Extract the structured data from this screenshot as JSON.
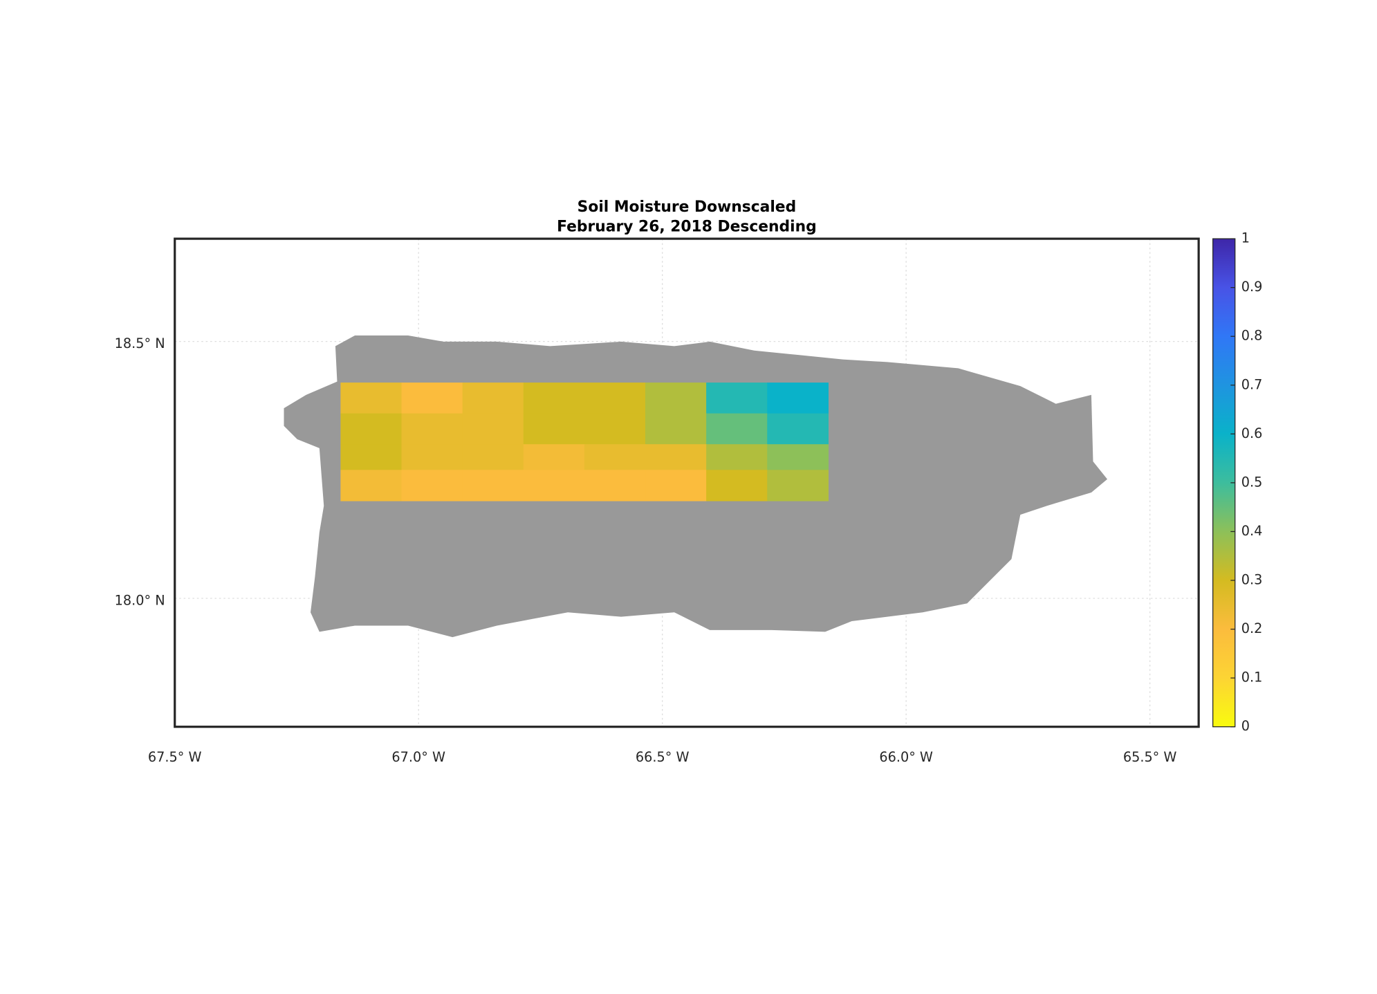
{
  "chart_data": {
    "type": "heatmap",
    "title": [
      "Soil Moisture Downscaled",
      "February 26, 2018 Descending"
    ],
    "xlim": [
      -67.5,
      -65.4
    ],
    "ylim": [
      17.75,
      18.7
    ],
    "xticks": [
      {
        "value": -67.5,
        "label": "67.5° W"
      },
      {
        "value": -67.0,
        "label": "67.0° W"
      },
      {
        "value": -66.5,
        "label": "66.5° W"
      },
      {
        "value": -66.0,
        "label": "66.0° W"
      },
      {
        "value": -65.5,
        "label": "65.5° W"
      }
    ],
    "yticks": [
      {
        "value": 18.0,
        "label": "18.0° N"
      },
      {
        "value": 18.5,
        "label": "18.5° N"
      }
    ],
    "grid": true,
    "lon_edges": [
      -67.16,
      -67.035,
      -66.91,
      -66.785,
      -66.66,
      -66.535,
      -66.41,
      -66.285,
      -66.16
    ],
    "lat_edges": [
      18.42,
      18.36,
      18.3,
      18.25,
      18.19
    ],
    "values": [
      [
        0.25,
        0.2,
        0.25,
        0.3,
        0.3,
        0.35,
        0.55,
        0.6
      ],
      [
        0.3,
        0.25,
        0.25,
        0.3,
        0.3,
        0.35,
        0.45,
        0.55
      ],
      [
        0.3,
        0.25,
        0.25,
        0.22,
        0.25,
        0.25,
        0.35,
        0.4
      ],
      [
        0.22,
        0.2,
        0.2,
        0.2,
        0.2,
        0.2,
        0.3,
        0.35
      ]
    ],
    "clim": [
      0,
      1
    ],
    "cticks": [
      0,
      0.1,
      0.2,
      0.3,
      0.4,
      0.5,
      0.6,
      0.7,
      0.8,
      0.9,
      1
    ],
    "colormap": [
      "#f9fb0e",
      "#fcd434",
      "#fbbc3d",
      "#d4bb21",
      "#8dc059",
      "#3dbd9d",
      "#0ab2c9",
      "#1f94e0",
      "#3077f6",
      "#4853e6",
      "#3e26a8"
    ]
  }
}
